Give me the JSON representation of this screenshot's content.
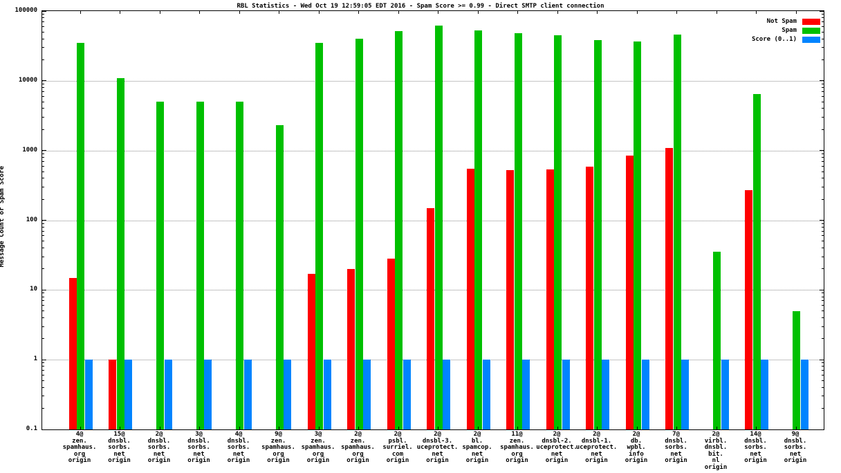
{
  "title": "RBL Statistics - Wed Oct 19 12:59:05 EDT 2016 - Spam Score >= 0.99 - Direct SMTP client connection",
  "ylabel": "Message Count or Spam Score",
  "legend": [
    {
      "label": "Not Spam",
      "color": "#ff0000"
    },
    {
      "label": "Spam",
      "color": "#00c000"
    },
    {
      "label": "Score (0..1)",
      "color": "#0084ff"
    }
  ],
  "chart_data": {
    "type": "bar",
    "yscale": "log",
    "ylim": [
      0.1,
      100000
    ],
    "yticks": [
      100000,
      10000,
      1000,
      100,
      10,
      1,
      0.1
    ],
    "grid": true,
    "legend_position": "top-right",
    "categories": [
      [
        "4@",
        "zen.",
        "spamhaus.",
        "org",
        "origin"
      ],
      [
        "15@",
        "dnsbl.",
        "sorbs.",
        "net",
        "origin"
      ],
      [
        "2@",
        "dnsbl.",
        "sorbs.",
        "net",
        "origin"
      ],
      [
        "3@",
        "dnsbl.",
        "sorbs.",
        "net",
        "origin"
      ],
      [
        "4@",
        "dnsbl.",
        "sorbs.",
        "net",
        "origin"
      ],
      [
        "9@",
        "zen.",
        "spamhaus.",
        "org",
        "origin"
      ],
      [
        "3@",
        "zen.",
        "spamhaus.",
        "org",
        "origin"
      ],
      [
        "2@",
        "zen.",
        "spamhaus.",
        "org",
        "origin"
      ],
      [
        "2@",
        "psbl.",
        "surriel.",
        "com",
        "origin"
      ],
      [
        "2@",
        "dnsbl-3.",
        "uceprotect.",
        "net",
        "origin"
      ],
      [
        "2@",
        "bl.",
        "spamcop.",
        "net",
        "origin"
      ],
      [
        "11@",
        "zen.",
        "spamhaus.",
        "org",
        "origin"
      ],
      [
        "2@",
        "dnsbl-2.",
        "uceprotect.",
        "net",
        "origin"
      ],
      [
        "2@",
        "dnsbl-1.",
        "uceprotect.",
        "net",
        "origin"
      ],
      [
        "2@",
        "db.",
        "wpbl.",
        "info",
        "origin"
      ],
      [
        "7@",
        "dnsbl.",
        "sorbs.",
        "net",
        "origin"
      ],
      [
        "2@",
        "virbl.",
        "dnsbl.",
        "bit.",
        "nl",
        "origin"
      ],
      [
        "14@",
        "dnsbl.",
        "sorbs.",
        "net",
        "origin"
      ],
      [
        "9@",
        "dnsbl.",
        "sorbs.",
        "net",
        "origin"
      ]
    ],
    "series": [
      {
        "name": "Not Spam",
        "color": "#ff0000",
        "values": [
          15,
          1,
          null,
          null,
          null,
          null,
          17,
          20,
          28,
          150,
          550,
          520,
          540,
          590,
          850,
          1100,
          null,
          270,
          null
        ]
      },
      {
        "name": "Spam",
        "color": "#00c000",
        "values": [
          35000,
          11000,
          5000,
          5000,
          5000,
          2300,
          35000,
          40000,
          52000,
          62000,
          53000,
          48000,
          45000,
          38000,
          37000,
          46000,
          35,
          6500,
          5
        ]
      },
      {
        "name": "Score (0..1)",
        "color": "#0084ff",
        "values": [
          1,
          1,
          1,
          1,
          1,
          1,
          1,
          1,
          1,
          1,
          1,
          1,
          1,
          1,
          1,
          1,
          1,
          1,
          1
        ]
      }
    ]
  }
}
